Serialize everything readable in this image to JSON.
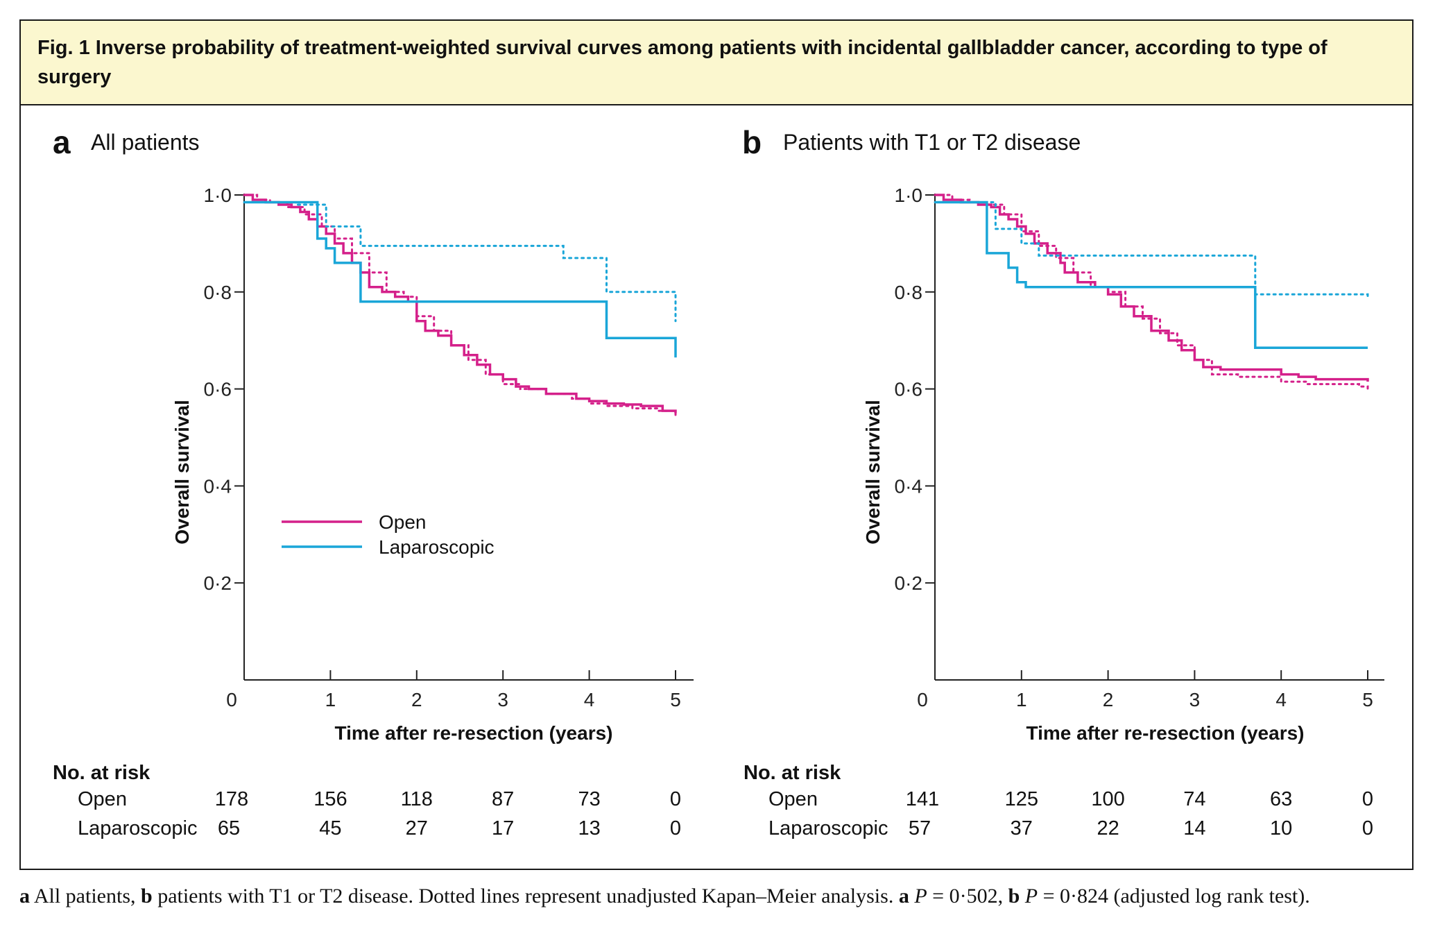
{
  "figure": {
    "title": "Fig. 1 Inverse probability of treatment-weighted survival curves among patients with incidental gallbladder cancer, according to type of surgery"
  },
  "colors": {
    "open": "#d4208a",
    "laparoscopic": "#1aa6d8",
    "banner": "#fbf7cf"
  },
  "legend": {
    "open": "Open",
    "laparoscopic": "Laparoscopic"
  },
  "chart_data": [
    {
      "type": "line",
      "panel": "a",
      "title": "All patients",
      "xlabel": "Time after re-resection (years)",
      "ylabel": "Overall survival",
      "xlim": [
        0,
        5
      ],
      "ylim": [
        0,
        1
      ],
      "xticks": [
        "0",
        "1",
        "2",
        "3",
        "4",
        "5"
      ],
      "yticks": [
        "0·2",
        "0·4",
        "0·6",
        "0·8",
        "1·0"
      ],
      "series": [
        {
          "name": "Open",
          "style": "solid",
          "color": "#d4208a",
          "x": [
            0,
            0.1,
            0.25,
            0.4,
            0.55,
            0.65,
            0.75,
            0.85,
            0.95,
            1.05,
            1.15,
            1.25,
            1.35,
            1.45,
            1.6,
            1.75,
            1.9,
            2.0,
            2.1,
            2.25,
            2.4,
            2.55,
            2.7,
            2.85,
            3.0,
            3.15,
            3.3,
            3.5,
            3.7,
            3.85,
            4.0,
            4.2,
            4.4,
            4.6,
            4.85,
            5.0
          ],
          "y": [
            1.0,
            0.99,
            0.985,
            0.98,
            0.975,
            0.965,
            0.95,
            0.935,
            0.92,
            0.9,
            0.88,
            0.86,
            0.84,
            0.81,
            0.8,
            0.79,
            0.78,
            0.74,
            0.72,
            0.71,
            0.69,
            0.67,
            0.65,
            0.63,
            0.62,
            0.605,
            0.6,
            0.59,
            0.59,
            0.58,
            0.575,
            0.57,
            0.568,
            0.565,
            0.555,
            0.55
          ]
        },
        {
          "name": "Open",
          "style": "dotted",
          "color": "#d4208a",
          "x": [
            0,
            0.15,
            0.3,
            0.5,
            0.7,
            0.9,
            1.05,
            1.25,
            1.45,
            1.65,
            1.85,
            2.0,
            2.2,
            2.4,
            2.6,
            2.8,
            3.0,
            3.2,
            3.5,
            3.8,
            4.0,
            4.2,
            4.5,
            4.8,
            5.0
          ],
          "y": [
            1.0,
            0.99,
            0.985,
            0.975,
            0.96,
            0.935,
            0.91,
            0.88,
            0.84,
            0.8,
            0.79,
            0.75,
            0.72,
            0.69,
            0.66,
            0.63,
            0.61,
            0.6,
            0.59,
            0.58,
            0.57,
            0.565,
            0.56,
            0.555,
            0.54
          ]
        },
        {
          "name": "Laparoscopic",
          "style": "solid",
          "color": "#1aa6d8",
          "x": [
            0,
            0.6,
            0.85,
            0.95,
            1.05,
            1.35,
            1.35,
            3.7,
            4.2,
            5.0
          ],
          "y": [
            0.985,
            0.985,
            0.91,
            0.89,
            0.86,
            0.85,
            0.78,
            0.78,
            0.705,
            0.665
          ]
        },
        {
          "name": "Laparoscopic",
          "style": "dotted",
          "color": "#1aa6d8",
          "x": [
            0,
            0.6,
            0.95,
            1.35,
            3.7,
            4.2,
            5.0
          ],
          "y": [
            0.985,
            0.98,
            0.935,
            0.895,
            0.87,
            0.8,
            0.74
          ]
        }
      ],
      "risk": {
        "heading": "No. at risk",
        "rows": [
          {
            "label": "Open",
            "values": [
              "178",
              "156",
              "118",
              "87",
              "73",
              "0"
            ]
          },
          {
            "label": "Laparoscopic",
            "values": [
              "65",
              "45",
              "27",
              "17",
              "13",
              "0"
            ]
          }
        ]
      }
    },
    {
      "type": "line",
      "panel": "b",
      "title": "Patients with T1 or T2 disease",
      "xlabel": "Time after re-resection (years)",
      "ylabel": "Overall survival",
      "xlim": [
        0,
        5
      ],
      "ylim": [
        0,
        1
      ],
      "xticks": [
        "0",
        "1",
        "2",
        "3",
        "4",
        "5"
      ],
      "yticks": [
        "0·2",
        "0·4",
        "0·6",
        "0·8",
        "1·0"
      ],
      "series": [
        {
          "name": "Open",
          "style": "solid",
          "color": "#d4208a",
          "x": [
            0,
            0.1,
            0.3,
            0.5,
            0.65,
            0.75,
            0.85,
            0.95,
            1.05,
            1.15,
            1.3,
            1.45,
            1.5,
            1.65,
            1.85,
            2.0,
            2.15,
            2.3,
            2.5,
            2.7,
            2.85,
            3.0,
            3.1,
            3.3,
            3.5,
            3.7,
            4.0,
            4.2,
            4.4,
            4.7,
            5.0
          ],
          "y": [
            1.0,
            0.99,
            0.985,
            0.98,
            0.975,
            0.96,
            0.95,
            0.935,
            0.92,
            0.9,
            0.88,
            0.86,
            0.84,
            0.82,
            0.81,
            0.795,
            0.77,
            0.75,
            0.72,
            0.7,
            0.68,
            0.66,
            0.645,
            0.64,
            0.64,
            0.64,
            0.63,
            0.625,
            0.62,
            0.62,
            0.615
          ]
        },
        {
          "name": "Open",
          "style": "dotted",
          "color": "#d4208a",
          "x": [
            0,
            0.2,
            0.4,
            0.6,
            0.8,
            1.0,
            1.2,
            1.4,
            1.6,
            1.8,
            2.0,
            2.2,
            2.4,
            2.6,
            2.8,
            3.0,
            3.2,
            3.5,
            3.8,
            4.0,
            4.3,
            4.6,
            4.9,
            5.0
          ],
          "y": [
            1.0,
            0.99,
            0.985,
            0.98,
            0.96,
            0.925,
            0.895,
            0.87,
            0.84,
            0.81,
            0.8,
            0.77,
            0.745,
            0.715,
            0.69,
            0.66,
            0.63,
            0.625,
            0.625,
            0.615,
            0.61,
            0.61,
            0.605,
            0.6
          ]
        },
        {
          "name": "Laparoscopic",
          "style": "solid",
          "color": "#1aa6d8",
          "x": [
            0,
            0.55,
            0.6,
            0.85,
            0.95,
            1.05,
            3.7,
            3.7,
            5.0
          ],
          "y": [
            0.985,
            0.985,
            0.88,
            0.85,
            0.82,
            0.81,
            0.81,
            0.685,
            0.685
          ]
        },
        {
          "name": "Laparoscopic",
          "style": "dotted",
          "color": "#1aa6d8",
          "x": [
            0,
            0.55,
            0.7,
            1.0,
            1.2,
            3.7,
            3.7,
            5.0
          ],
          "y": [
            0.985,
            0.985,
            0.93,
            0.9,
            0.875,
            0.875,
            0.795,
            0.79
          ]
        }
      ],
      "risk": {
        "heading": "No. at risk",
        "rows": [
          {
            "label": "Open",
            "values": [
              "141",
              "125",
              "100",
              "74",
              "63",
              "0"
            ]
          },
          {
            "label": "Laparoscopic",
            "values": [
              "57",
              "37",
              "22",
              "14",
              "10",
              "0"
            ]
          }
        ]
      }
    }
  ],
  "caption": {
    "a_label": "a",
    "part1": " All patients, ",
    "b_label": "b",
    "part2": " patients with T1 or T2 disease. Dotted lines represent unadjusted Kapan–Meier analysis. ",
    "a_label2": "a",
    "p_a_italic": " P",
    "p_a_value": " = 0·502, ",
    "b_label2": "b",
    "p_b_italic": " P",
    "p_b_value": " = 0·824 (adjusted log rank test)."
  }
}
